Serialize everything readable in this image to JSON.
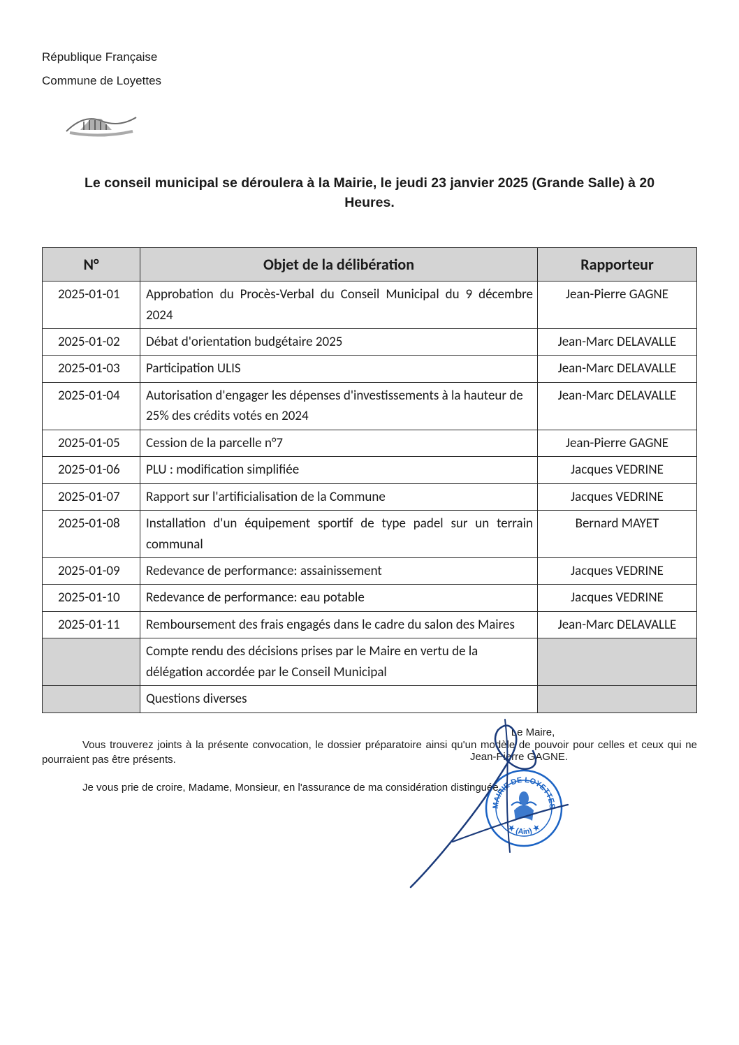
{
  "header": {
    "line1": "République Française",
    "line2": "Commune de Loyettes"
  },
  "title": "Le conseil municipal se déroulera à la Mairie, le  jeudi 23 janvier 2025 (Grande Salle) à 20 Heures.",
  "table": {
    "headers": {
      "num": "N°",
      "objet": "Objet de la délibération",
      "rapporteur": "Rapporteur"
    },
    "rows": [
      {
        "num": "2025-01-01",
        "objet": "Approbation du Procès-Verbal du Conseil Municipal du 9 décembre 2024",
        "rapporteur": "Jean-Pierre GAGNE",
        "justify": true
      },
      {
        "num": "2025-01-02",
        "objet": "Débat d'orientation budgétaire 2025",
        "rapporteur": "Jean-Marc DELAVALLE",
        "justify": false
      },
      {
        "num": "2025-01-03",
        "objet": "Participation ULIS",
        "rapporteur": "Jean-Marc DELAVALLE",
        "justify": false
      },
      {
        "num": "2025-01-04",
        "objet": "Autorisation d'engager les dépenses d'investissements à la hauteur de 25% des crédits votés en 2024",
        "rapporteur": "Jean-Marc DELAVALLE",
        "justify": false
      },
      {
        "num": "2025-01-05",
        "objet": "Cession de la parcelle n°7",
        "rapporteur": "Jean-Pierre GAGNE",
        "justify": false
      },
      {
        "num": "2025-01-06",
        "objet": "PLU : modification simplifiée",
        "rapporteur": "Jacques VEDRINE",
        "justify": false
      },
      {
        "num": "2025-01-07",
        "objet": "Rapport sur l'artificialisation de la Commune",
        "rapporteur": "Jacques VEDRINE",
        "justify": false
      },
      {
        "num": "2025-01-08",
        "objet": "Installation d'un équipement sportif de type padel sur un terrain communal",
        "rapporteur": "Bernard MAYET",
        "justify": true
      },
      {
        "num": "2025-01-09",
        "objet": "Redevance de performance: assainissement",
        "rapporteur": "Jacques VEDRINE",
        "justify": false
      },
      {
        "num": "2025-01-10",
        "objet": "Redevance de performance: eau potable",
        "rapporteur": "Jacques VEDRINE",
        "justify": false
      },
      {
        "num": "2025-01-11",
        "objet": "Remboursement des frais engagés dans le cadre du salon des Maires",
        "rapporteur": "Jean-Marc DELAVALLE",
        "justify": false
      },
      {
        "num": "",
        "objet": "Compte rendu des décisions prises par le Maire en vertu de la délégation accordée par le Conseil Municipal",
        "rapporteur": "",
        "shaded": true
      },
      {
        "num": "",
        "objet": "Questions diverses",
        "rapporteur": "",
        "shaded": true
      }
    ]
  },
  "post1": "Vous trouverez joints à la présente convocation, le dossier préparatoire ainsi qu'un modèle de pouvoir pour celles et ceux qui ne pourraient pas être présents.",
  "post2": "Je vous prie de croire, Madame, Monsieur, en l'assurance de ma considération distinguée.",
  "signature": {
    "role": "Le Maire,",
    "name": "Jean-Pierre GAGNE."
  },
  "colors": {
    "stamp": "#1b63c4",
    "ink": "#1a3a7a",
    "header_bg": "#d4d4d4",
    "border": "#2a2a2a"
  }
}
